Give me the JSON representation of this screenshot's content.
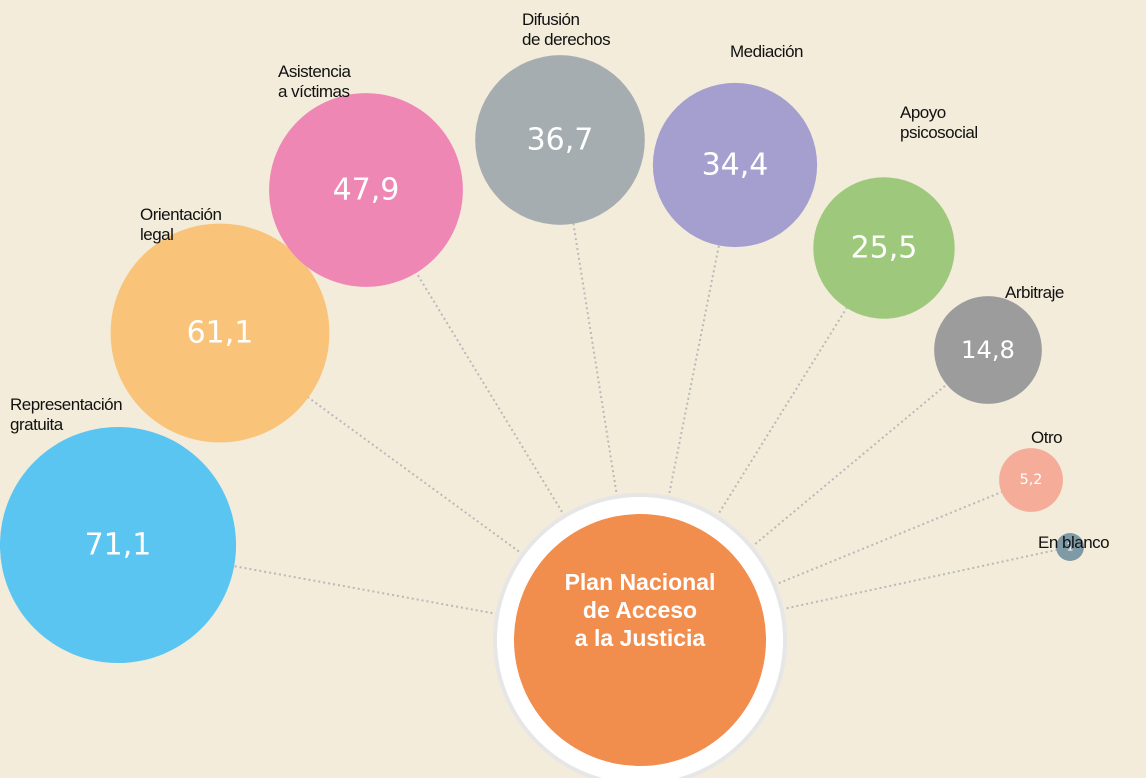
{
  "chart_data": {
    "type": "bubble",
    "center_label": "Plan Nacional\nde Acceso\na la Justicia",
    "categories": [
      "Representación\ngratuita",
      "Orientación\nlegal",
      "Asistencia\na víctimas",
      "Difusión\nde derechos",
      "Mediación",
      "Apoyo\npsicosocial",
      "Arbitraje",
      "Otro",
      "En blanco"
    ],
    "values": [
      71.1,
      61.1,
      47.9,
      36.7,
      34.4,
      25.5,
      14.8,
      5.2,
      1
    ],
    "value_labels": [
      "71,1",
      "61,1",
      "47,9",
      "36,7",
      "34,4",
      "25,5",
      "14,8",
      "5,2",
      "1"
    ],
    "colors": [
      "#5bc5f1",
      "#f9c479",
      "#ef87b5",
      "#a5adb0",
      "#a59fd0",
      "#9ec97c",
      "#9c9c9c",
      "#f5ad99",
      "#7d9aa6"
    ],
    "center_color": "#f18d4d"
  }
}
